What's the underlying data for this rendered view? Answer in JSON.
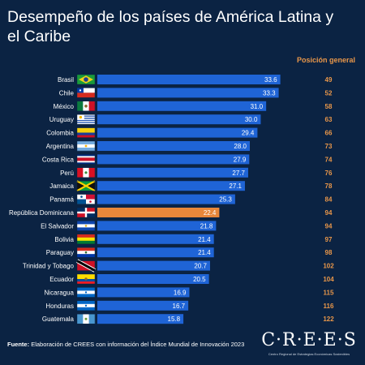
{
  "chart_data": {
    "type": "bar",
    "orientation": "horizontal",
    "title": "Desempeño de los países de América Latina y el Caribe",
    "rank_header": "Posición general",
    "xlim": [
      0,
      35
    ],
    "colors": {
      "bar": "#1f64d6",
      "highlight": "#e8873a",
      "rank": "#e9974a",
      "background": "#0b2343"
    },
    "rows": [
      {
        "country": "Brasil",
        "value": 33.6,
        "label": "33.6",
        "rank": "49",
        "flag": "brazil-flag"
      },
      {
        "country": "Chile",
        "value": 33.3,
        "label": "33.3",
        "rank": "52",
        "flag": "chile-flag"
      },
      {
        "country": "México",
        "value": 31.0,
        "label": "31.0",
        "rank": "58",
        "flag": "mexico-flag"
      },
      {
        "country": "Uruguay",
        "value": 30.0,
        "label": "30.0",
        "rank": "63",
        "flag": "uruguay-flag"
      },
      {
        "country": "Colombia",
        "value": 29.4,
        "label": "29.4",
        "rank": "66",
        "flag": "colombia-flag"
      },
      {
        "country": "Argentina",
        "value": 28.0,
        "label": "28.0",
        "rank": "73",
        "flag": "argentina-flag"
      },
      {
        "country": "Costa Rica",
        "value": 27.9,
        "label": "27.9",
        "rank": "74",
        "flag": "costa-rica-flag"
      },
      {
        "country": "Perú",
        "value": 27.7,
        "label": "27.7",
        "rank": "76",
        "flag": "peru-flag"
      },
      {
        "country": "Jamaica",
        "value": 27.1,
        "label": "27.1",
        "rank": "78",
        "flag": "jamaica-flag"
      },
      {
        "country": "Panamá",
        "value": 25.3,
        "label": "25.3",
        "rank": "84",
        "flag": "panama-flag"
      },
      {
        "country": "República Dominicana",
        "value": 22.4,
        "label": "22.4",
        "rank": "94",
        "flag": "dominican-republic-flag",
        "highlight": true
      },
      {
        "country": "El Salvador",
        "value": 21.8,
        "label": "21.8",
        "rank": "94",
        "flag": "el-salvador-flag"
      },
      {
        "country": "Bolivia",
        "value": 21.4,
        "label": "21.4",
        "rank": "97",
        "flag": "bolivia-flag"
      },
      {
        "country": "Paraguay",
        "value": 21.4,
        "label": "21.4",
        "rank": "98",
        "flag": "paraguay-flag"
      },
      {
        "country": "Trinidad y Tobago",
        "value": 20.7,
        "label": "20.7",
        "rank": "102",
        "flag": "trinidad-and-tobago-flag"
      },
      {
        "country": "Ecuador",
        "value": 20.5,
        "label": "20.5",
        "rank": "104",
        "flag": "ecuador-flag"
      },
      {
        "country": "Nicaragua",
        "value": 16.9,
        "label": "16.9",
        "rank": "115",
        "flag": "nicaragua-flag"
      },
      {
        "country": "Honduras",
        "value": 16.7,
        "label": "16.7",
        "rank": "116",
        "flag": "honduras-flag"
      },
      {
        "country": "Guatemala",
        "value": 15.8,
        "label": "15.8",
        "rank": "122",
        "flag": "guatemala-flag"
      }
    ]
  },
  "footer": {
    "label": "Fuente:",
    "text": "Elaboración de CREES con información del Índice Mundial de Innovación 2023"
  },
  "logo": {
    "wordmark": "C·R·E·E·S",
    "subtitle": "Centro Regional de Estrategias Económicas Sostenibles"
  }
}
